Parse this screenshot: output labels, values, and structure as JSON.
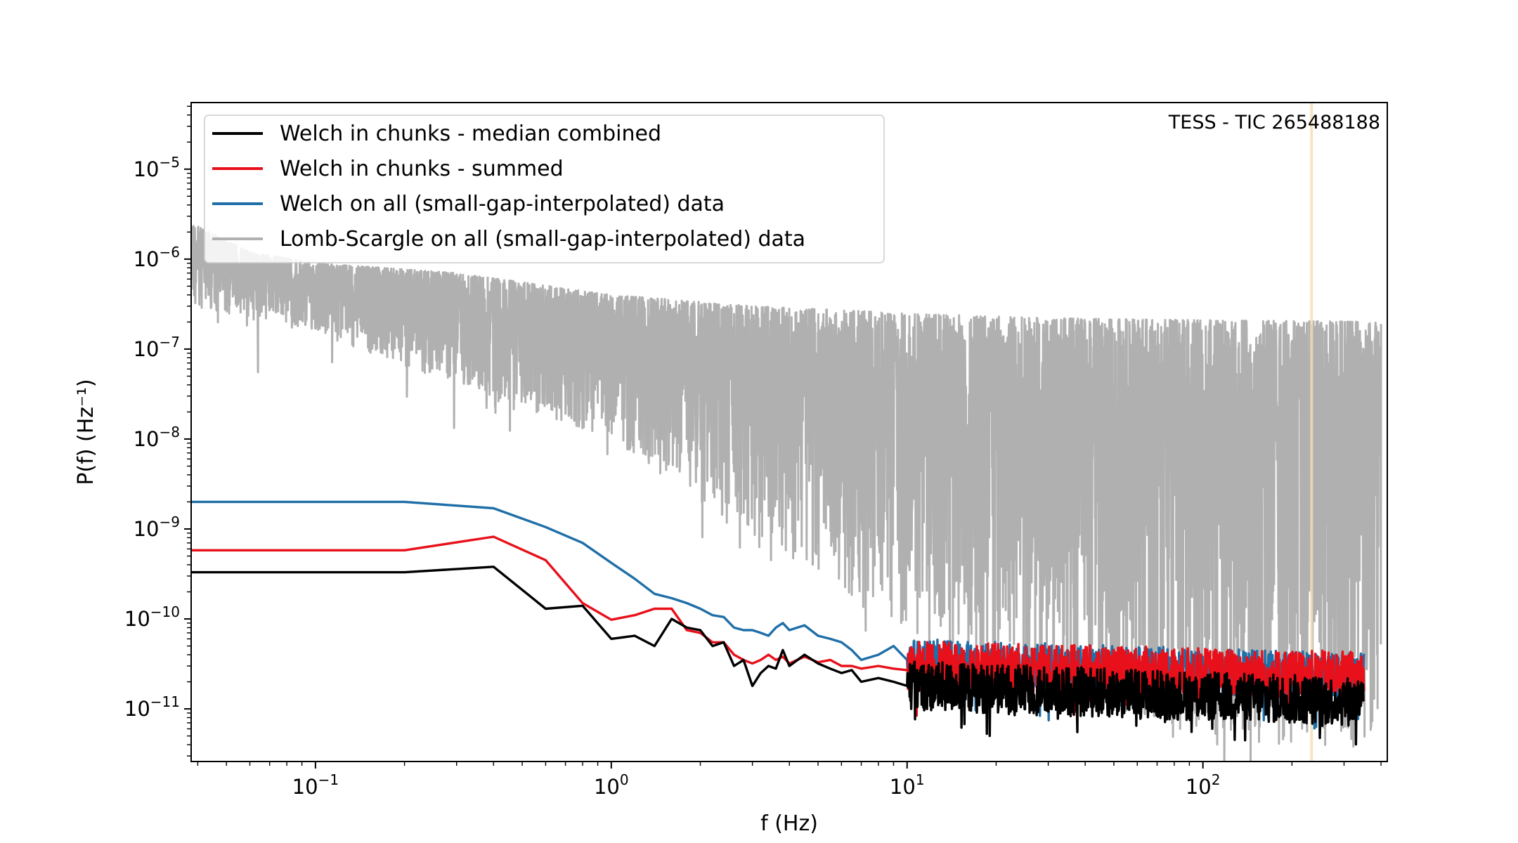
{
  "chart_data": {
    "type": "line",
    "title": "",
    "annotation": "TESS - TIC 265488188",
    "xlabel": "f (Hz)",
    "ylabel": "P(f) (Hz⁻¹)",
    "xscale": "log",
    "yscale": "log",
    "xlim": [
      0.038,
      420
    ],
    "ylim": [
      2.6e-12,
      5.5e-05
    ],
    "grid": false,
    "legend_position": "upper-left",
    "x_ticks": [
      {
        "value": 0.1,
        "base": "10",
        "exp": "−1"
      },
      {
        "value": 1,
        "base": "10",
        "exp": "0"
      },
      {
        "value": 10,
        "base": "10",
        "exp": "1"
      },
      {
        "value": 100,
        "base": "10",
        "exp": "2"
      }
    ],
    "y_ticks": [
      {
        "value": 1e-11,
        "base": "10",
        "exp": "−11"
      },
      {
        "value": 1e-10,
        "base": "10",
        "exp": "−10"
      },
      {
        "value": 1e-09,
        "base": "10",
        "exp": "−9"
      },
      {
        "value": 1e-08,
        "base": "10",
        "exp": "−8"
      },
      {
        "value": 1e-07,
        "base": "10",
        "exp": "−7"
      },
      {
        "value": 1e-06,
        "base": "10",
        "exp": "−6"
      },
      {
        "value": 1e-05,
        "base": "10",
        "exp": "−5"
      }
    ],
    "vertical_marker": {
      "x": 233,
      "color": "#f5deb3"
    },
    "lomb_scargle": {
      "name": "Lomb-Scargle on all (small-gap-interpolated) data",
      "color": "#b0b0b0",
      "fmin": 0.038,
      "fmax": 400,
      "upper_envelope": [
        [
          0.038,
          2.5e-06
        ],
        [
          0.06,
          1.2e-06
        ],
        [
          0.1,
          9e-07
        ],
        [
          0.3,
          7e-07
        ],
        [
          1,
          4e-07
        ],
        [
          3,
          3e-07
        ],
        [
          10,
          2.5e-07
        ],
        [
          30,
          2.2e-07
        ],
        [
          100,
          2.1e-07
        ],
        [
          400,
          2e-07
        ]
      ],
      "lower_envelope": [
        [
          0.038,
          3e-07
        ],
        [
          0.1,
          1.5e-07
        ],
        [
          0.3,
          4e-08
        ],
        [
          1,
          1e-08
        ],
        [
          2,
          2e-09
        ],
        [
          5,
          3e-10
        ],
        [
          10,
          6e-11
        ],
        [
          30,
          1.5e-11
        ],
        [
          100,
          5e-12
        ],
        [
          400,
          3e-12
        ]
      ]
    },
    "series": [
      {
        "name": "Welch in chunks - median combined",
        "color": "#000000",
        "x": [
          0.038,
          0.2,
          0.4,
          0.6,
          0.8,
          1.0,
          1.2,
          1.4,
          1.6,
          1.8,
          2.0,
          2.2,
          2.4,
          2.6,
          2.8,
          3.0,
          3.2,
          3.4,
          3.6,
          3.8,
          4.0,
          4.5,
          5.0,
          5.5,
          6.0,
          6.5,
          7.0,
          8.0,
          9.0,
          10.0
        ],
        "y": [
          3.3e-10,
          3.3e-10,
          3.8e-10,
          1.3e-10,
          1.4e-10,
          6e-11,
          6.5e-11,
          5e-11,
          1e-10,
          8e-11,
          7.5e-11,
          5e-11,
          5.5e-11,
          3e-11,
          3.5e-11,
          1.8e-11,
          2.5e-11,
          3e-11,
          2.8e-11,
          4.5e-11,
          3e-11,
          4e-11,
          3.2e-11,
          2.8e-11,
          2.5e-11,
          2.7e-11,
          2e-11,
          2.2e-11,
          2e-11,
          1.8e-11
        ],
        "noise_tail": {
          "from": 10,
          "to": 350,
          "level_start": 1.8e-11,
          "level_end": 1.2e-11
        }
      },
      {
        "name": "Welch in chunks - summed",
        "color": "#e8101a",
        "x": [
          0.038,
          0.2,
          0.4,
          0.6,
          0.8,
          1.0,
          1.2,
          1.4,
          1.6,
          1.8,
          2.0,
          2.2,
          2.4,
          2.6,
          2.8,
          3.0,
          3.2,
          3.4,
          3.6,
          3.8,
          4.0,
          4.5,
          5.0,
          5.5,
          6.0,
          6.5,
          7.0,
          8.0,
          9.0,
          10.0
        ],
        "y": [
          5.8e-10,
          5.8e-10,
          8.2e-10,
          4.5e-10,
          1.5e-10,
          9.8e-11,
          1.1e-10,
          1.3e-10,
          1.3e-10,
          7.5e-11,
          7e-11,
          5.5e-11,
          5.5e-11,
          4e-11,
          3.5e-11,
          3.2e-11,
          3.5e-11,
          4e-11,
          3.5e-11,
          3.8e-11,
          3.2e-11,
          3.8e-11,
          3.3e-11,
          3.5e-11,
          3e-11,
          3e-11,
          2.8e-11,
          3e-11,
          2.8e-11,
          2.7e-11
        ],
        "noise_tail": {
          "from": 10,
          "to": 350,
          "level_start": 3e-11,
          "level_end": 2.3e-11
        }
      },
      {
        "name": "Welch on all (small-gap-interpolated) data",
        "color": "#1f6fa8",
        "x": [
          0.038,
          0.2,
          0.4,
          0.6,
          0.8,
          1.0,
          1.2,
          1.4,
          1.6,
          1.8,
          2.0,
          2.2,
          2.4,
          2.6,
          2.8,
          3.0,
          3.2,
          3.4,
          3.6,
          3.8,
          4.0,
          4.5,
          5.0,
          5.5,
          6.0,
          6.5,
          7.0,
          8.0,
          9.0,
          10.0
        ],
        "y": [
          2e-09,
          2e-09,
          1.7e-09,
          1.05e-09,
          7e-10,
          4.2e-10,
          2.8e-10,
          1.9e-10,
          1.7e-10,
          1.5e-10,
          1.3e-10,
          1.1e-10,
          1.05e-10,
          8e-11,
          7.5e-11,
          7.5e-11,
          7e-11,
          6.5e-11,
          8e-11,
          9e-11,
          7.5e-11,
          8.5e-11,
          6.5e-11,
          6e-11,
          5.5e-11,
          4.5e-11,
          3.5e-11,
          4e-11,
          5e-11,
          3.5e-11
        ],
        "noise_tail": {
          "from": 10,
          "to": 350,
          "level_start": 3.2e-11,
          "level_end": 2.2e-11
        }
      }
    ],
    "legend_order": [
      2,
      0,
      1,
      "lomb"
    ]
  }
}
